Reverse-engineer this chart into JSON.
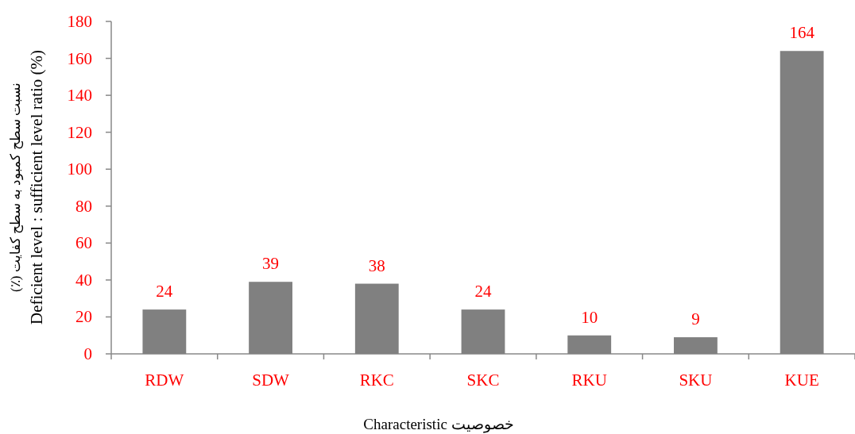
{
  "chart_data": {
    "type": "bar",
    "ylabel": "نسبت سطح کمبود به سطح کفایت (٪)\nDeficient level : sufficient level ratio (%)",
    "xlabel": "Characteristic    خصوصیت",
    "categories": [
      "RDW",
      "SDW",
      "RKC",
      "SKC",
      "RKU",
      "SKU",
      "KUE"
    ],
    "values": [
      24,
      39,
      38,
      24,
      10,
      9,
      164
    ],
    "color": "#808080",
    "ylim": [
      0,
      180
    ],
    "yticks": [
      0,
      20,
      40,
      60,
      80,
      100,
      120,
      140,
      160,
      180
    ],
    "data_labels": true
  }
}
